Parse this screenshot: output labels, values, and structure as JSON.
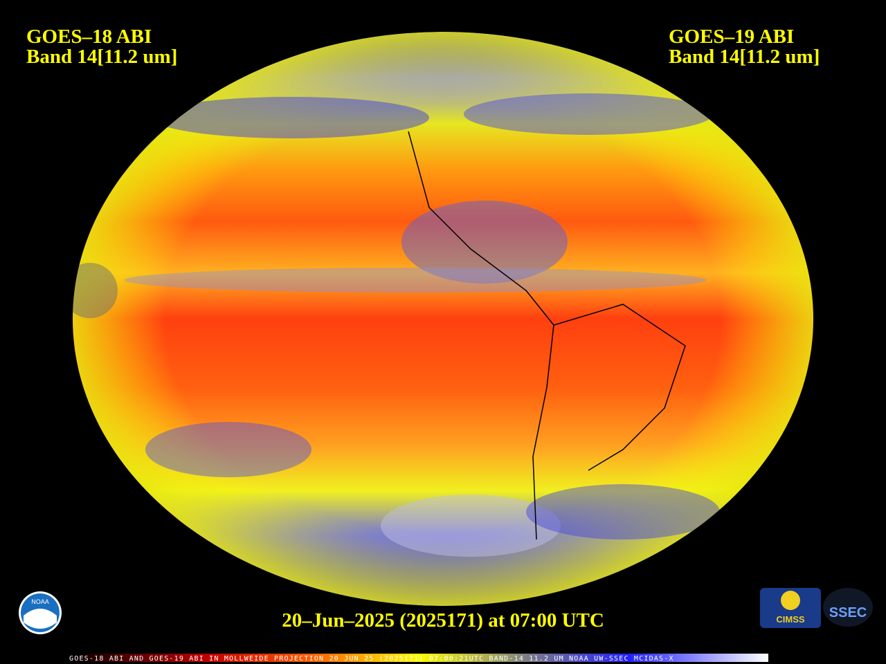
{
  "left_label": {
    "satellite": "GOES–18 ABI",
    "band": "Band 14[11.2 um]"
  },
  "right_label": {
    "satellite": "GOES–19 ABI",
    "band": "Band 14[11.2 um]"
  },
  "timestamp": "20–Jun–2025 (2025171) at 07:00 UTC",
  "footer": "GOES-18 ABI AND GOES-19 ABI IN MOLLWEIDE PROJECTION 20 JUN 25 (2025171) 07:00:21UTC BAND-14 11.2 UM NOAA UW-SSEC MCIDAS-X",
  "logos": {
    "noaa": "NOAA",
    "cimss": "CIMSS",
    "ssec": "SSEC"
  }
}
